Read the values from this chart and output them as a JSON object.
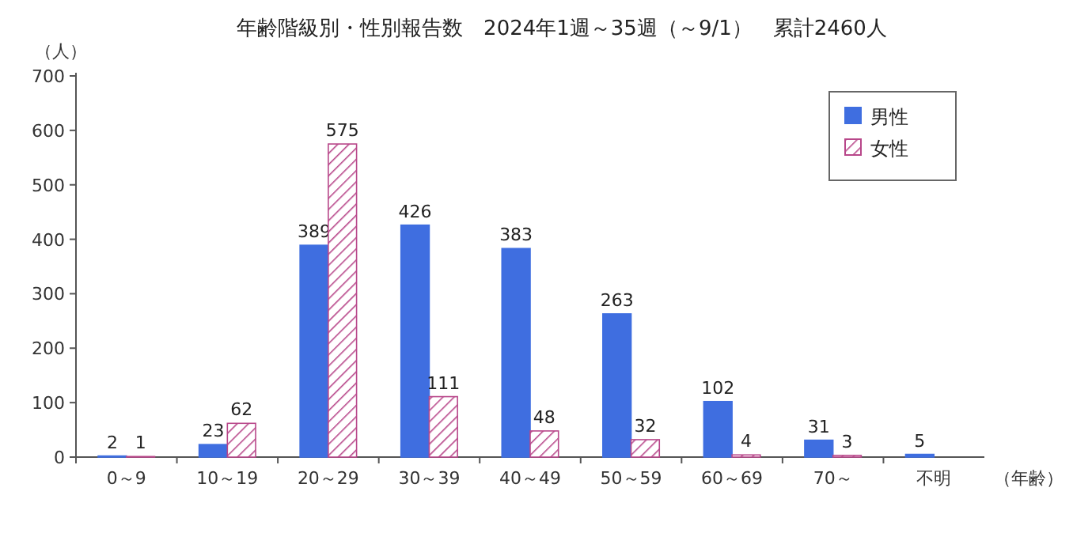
{
  "chart_data": {
    "type": "bar",
    "title": "年齢階級別・性別報告数　2024年1週～35週（～9/1）　累計2460人",
    "ylabel": "（人）",
    "xlabel": "（年齢）",
    "categories": [
      "0～9",
      "10～19",
      "20～29",
      "30～39",
      "40～49",
      "50～59",
      "60～69",
      "70～",
      "不明"
    ],
    "series": [
      {
        "name": "男性",
        "color": "#3f6ee0",
        "values": [
          2,
          23,
          389,
          426,
          383,
          263,
          102,
          31,
          5
        ]
      },
      {
        "name": "女性",
        "color": "#b8478a",
        "values": [
          1,
          62,
          575,
          111,
          48,
          32,
          4,
          3,
          null
        ]
      }
    ],
    "ylim": [
      0,
      700
    ],
    "yticks": [
      0,
      100,
      200,
      300,
      400,
      500,
      600,
      700
    ],
    "grid": false,
    "legend": "top right",
    "data_labels": true
  }
}
